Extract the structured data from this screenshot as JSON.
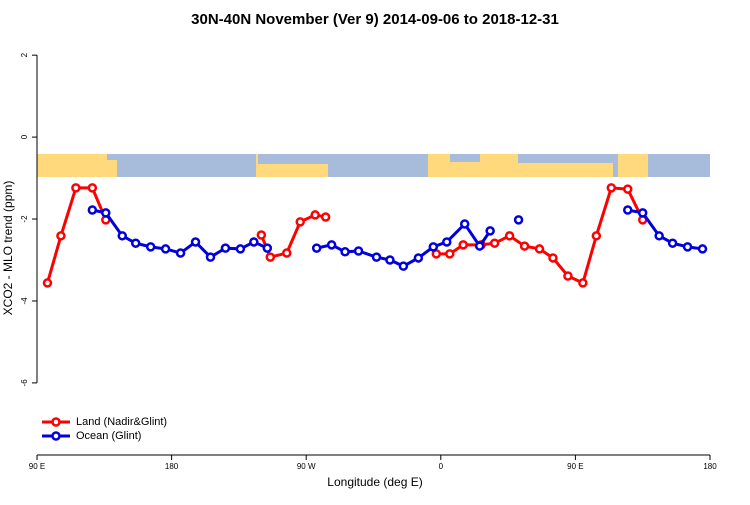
{
  "chart_data": {
    "type": "line",
    "title": "30N-40N November (Ver 9)   2014-09-06 to 2018-12-31",
    "x_label": "Longitude (deg E)",
    "y_label": "XCO2 - MLO trend (ppm)",
    "xlim": [
      90,
      540
    ],
    "xticks": [
      {
        "value": 90,
        "label": "90 E"
      },
      180,
      {
        "value": 270,
        "label": "90 W"
      },
      {
        "value": 360,
        "label": "0"
      },
      {
        "value": 450,
        "label": "90 E"
      },
      {
        "value": 540,
        "label": "180"
      }
    ],
    "ylim": [
      -7.76,
      2.37
    ],
    "yticks": [
      -6,
      -4,
      -2,
      0,
      2
    ],
    "legend": "bottom-left",
    "series": [
      {
        "name": "Land (Nadir&Glint)",
        "color": "#ff0000",
        "x": [
          97,
          106,
          116,
          127,
          136,
          null,
          240,
          246,
          257,
          266,
          276,
          283,
          null,
          357,
          366,
          375,
          387,
          396,
          406,
          416,
          426,
          435,
          445,
          455,
          464,
          474,
          485,
          495
        ],
        "values": [
          -3.56,
          -2.41,
          -1.24,
          -1.24,
          -2.02,
          null,
          -2.39,
          -2.93,
          -2.83,
          -2.07,
          -1.9,
          -1.95,
          null,
          -2.85,
          -2.85,
          -2.63,
          -2.63,
          -2.59,
          -2.41,
          -2.66,
          -2.73,
          -2.95,
          -3.39,
          -3.56,
          -2.41,
          -1.24,
          -1.27,
          -2.02
        ]
      },
      {
        "name": "Ocean (Glint)",
        "color": "#0000dd",
        "x": [
          127,
          136,
          147,
          156,
          166,
          176,
          186,
          196,
          206,
          216,
          226,
          235,
          244,
          null,
          277,
          287,
          296,
          305,
          317,
          326,
          335,
          345,
          355,
          364,
          376,
          386,
          393,
          null,
          412,
          null,
          485,
          495,
          506,
          515,
          525,
          535
        ],
        "values": [
          -1.78,
          -1.85,
          -2.41,
          -2.59,
          -2.68,
          -2.73,
          -2.83,
          -2.56,
          -2.93,
          -2.71,
          -2.73,
          -2.56,
          -2.71,
          null,
          -2.71,
          -2.63,
          -2.8,
          -2.78,
          -2.93,
          -3.0,
          -3.15,
          -2.95,
          -2.68,
          -2.56,
          -2.12,
          -2.66,
          -2.29,
          null,
          -2.02,
          null,
          -1.78,
          -1.85,
          -2.41,
          -2.59,
          -2.68,
          -2.73
        ]
      }
    ]
  }
}
